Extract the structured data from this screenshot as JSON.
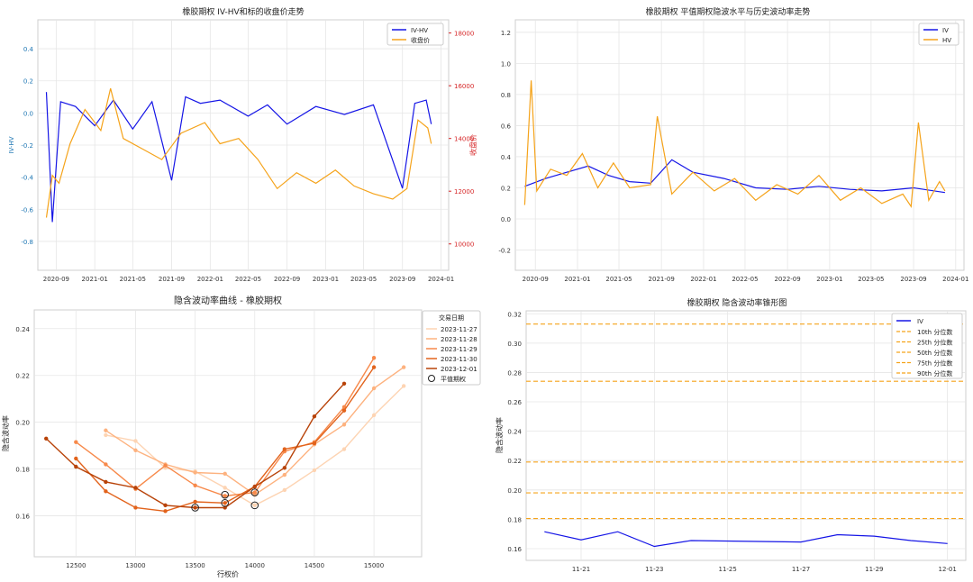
{
  "chart_data": [
    {
      "type": "line",
      "title": "橡胶期权 IV-HV和标的收盘价走势",
      "xlabel": "",
      "ylabel": "IV-HV",
      "y2label": "收盘价",
      "x_ticks": [
        "2020-09",
        "2021-01",
        "2021-05",
        "2021-09",
        "2022-01",
        "2022-05",
        "2022-09",
        "2023-01",
        "2023-05",
        "2023-09",
        "2024-01"
      ],
      "ylim": [
        -0.98,
        0.58
      ],
      "y_ticks": [
        "-0.8",
        "-0.6",
        "-0.4",
        "-0.2",
        "0.0",
        "0.2",
        "0.4"
      ],
      "y2lim": [
        9000,
        18500
      ],
      "y2_ticks": [
        "10000",
        "12000",
        "14000",
        "16000",
        "18000"
      ],
      "legend_position": "top-right",
      "grid": true,
      "series": [
        {
          "name": "IV-HV",
          "color": "#1515e6",
          "axis": "left",
          "x": [
            "2020-08-01",
            "2020-08-20",
            "2020-09-15",
            "2020-11-01",
            "2021-01-01",
            "2021-03-01",
            "2021-05-01",
            "2021-07-01",
            "2021-09-01",
            "2021-10-15",
            "2021-12-01",
            "2022-02-01",
            "2022-05-01",
            "2022-07-01",
            "2022-09-01",
            "2022-12-01",
            "2023-03-01",
            "2023-06-01",
            "2023-09-01",
            "2023-10-10",
            "2023-11-15",
            "2023-12-01"
          ],
          "values": [
            0.13,
            -0.68,
            0.07,
            0.04,
            -0.08,
            0.08,
            -0.1,
            0.07,
            -0.42,
            0.1,
            0.06,
            0.08,
            -0.02,
            0.05,
            -0.07,
            0.04,
            -0.01,
            0.05,
            -0.47,
            0.06,
            0.08,
            -0.07
          ]
        },
        {
          "name": "收盘价",
          "color": "#f5a31a",
          "axis": "right",
          "x": [
            "2020-08-01",
            "2020-08-20",
            "2020-09-10",
            "2020-10-15",
            "2020-12-01",
            "2021-01-20",
            "2021-02-20",
            "2021-04-01",
            "2021-06-01",
            "2021-08-01",
            "2021-10-01",
            "2021-12-15",
            "2022-02-01",
            "2022-04-01",
            "2022-06-01",
            "2022-08-01",
            "2022-10-01",
            "2022-12-01",
            "2023-02-01",
            "2023-04-01",
            "2023-06-01",
            "2023-08-01",
            "2023-09-15",
            "2023-10-20",
            "2023-11-20",
            "2023-12-01"
          ],
          "values": [
            11000,
            12600,
            12300,
            13800,
            15100,
            14300,
            15900,
            14000,
            13600,
            13200,
            14200,
            14600,
            13800,
            14000,
            13200,
            12100,
            12700,
            12300,
            12800,
            12200,
            11900,
            11700,
            12100,
            14700,
            14400,
            13800
          ]
        }
      ]
    },
    {
      "type": "line",
      "title": "橡胶期权 平值期权隐波水平与历史波动率走势",
      "xlabel": "",
      "ylabel": "",
      "x_ticks": [
        "2020-09",
        "2021-01",
        "2021-05",
        "2021-09",
        "2022-01",
        "2022-05",
        "2022-09",
        "2023-01",
        "2023-05",
        "2023-09",
        "2024-01"
      ],
      "ylim": [
        -0.33,
        1.28
      ],
      "y_ticks": [
        "-0.2",
        "0.0",
        "0.2",
        "0.4",
        "0.6",
        "0.8",
        "1.0",
        "1.2"
      ],
      "legend_position": "top-right",
      "grid": true,
      "series": [
        {
          "name": "IV",
          "color": "#1515e6",
          "x": [
            "2020-08-01",
            "2020-10-01",
            "2020-12-01",
            "2021-02-01",
            "2021-04-01",
            "2021-06-01",
            "2021-08-01",
            "2021-10-01",
            "2021-12-01",
            "2022-03-01",
            "2022-06-01",
            "2022-09-01",
            "2022-12-01",
            "2023-03-01",
            "2023-06-01",
            "2023-09-01",
            "2023-12-01"
          ],
          "values": [
            0.21,
            0.26,
            0.3,
            0.34,
            0.28,
            0.24,
            0.23,
            0.38,
            0.3,
            0.26,
            0.2,
            0.19,
            0.21,
            0.19,
            0.18,
            0.2,
            0.17
          ]
        },
        {
          "name": "HV",
          "color": "#f5a31a",
          "x": [
            "2020-08-01",
            "2020-08-20",
            "2020-09-05",
            "2020-10-15",
            "2020-12-01",
            "2021-01-15",
            "2021-03-01",
            "2021-04-15",
            "2021-06-01",
            "2021-08-01",
            "2021-08-20",
            "2021-10-01",
            "2021-12-01",
            "2022-02-01",
            "2022-04-01",
            "2022-06-01",
            "2022-08-01",
            "2022-10-01",
            "2022-12-01",
            "2023-02-01",
            "2023-04-01",
            "2023-06-01",
            "2023-08-01",
            "2023-08-25",
            "2023-09-15",
            "2023-10-15",
            "2023-11-15",
            "2023-12-01"
          ],
          "values": [
            0.09,
            0.89,
            0.18,
            0.32,
            0.28,
            0.42,
            0.2,
            0.36,
            0.2,
            0.22,
            0.66,
            0.16,
            0.3,
            0.18,
            0.26,
            0.12,
            0.22,
            0.16,
            0.28,
            0.12,
            0.2,
            0.1,
            0.16,
            0.08,
            0.62,
            0.12,
            0.24,
            0.18
          ]
        }
      ]
    },
    {
      "type": "line",
      "title": "隐含波动率曲线 - 橡胶期权",
      "xlabel": "行权价",
      "ylabel": "隐含波动率",
      "x_ticks": [
        "12500",
        "13000",
        "13500",
        "14000",
        "14500",
        "15000"
      ],
      "xlim": [
        12150,
        15400
      ],
      "ylim": [
        0.1425,
        0.248
      ],
      "y_ticks": [
        "0.16",
        "0.18",
        "0.20",
        "0.22",
        "0.24"
      ],
      "legend_title": "交易日期",
      "legend_position": "top-right",
      "grid": true,
      "series": [
        {
          "name": "2023-11-27",
          "color": "#fdd4b3",
          "x": [
            12750,
            13000,
            13250,
            13500,
            13750,
            14000,
            14250,
            14500,
            14750,
            15000,
            15250
          ],
          "values": [
            0.1945,
            0.192,
            0.1805,
            0.179,
            0.172,
            0.1645,
            0.171,
            0.1795,
            0.1885,
            0.203,
            0.2155
          ]
        },
        {
          "name": "2023-11-28",
          "color": "#fdb27f",
          "x": [
            12750,
            13000,
            13250,
            13500,
            13750,
            14000,
            14250,
            14500,
            14750,
            15000,
            15250
          ],
          "values": [
            0.1965,
            0.188,
            0.182,
            0.1785,
            0.178,
            0.169,
            0.1775,
            0.1905,
            0.199,
            0.2145,
            0.2235
          ]
        },
        {
          "name": "2023-11-29",
          "color": "#f7894a",
          "x": [
            12500,
            12750,
            13000,
            13250,
            13500,
            13750,
            14000,
            14250,
            14500,
            14750,
            15000
          ],
          "values": [
            0.1915,
            0.182,
            0.1715,
            0.1815,
            0.173,
            0.1685,
            0.17,
            0.1875,
            0.1915,
            0.2065,
            0.2275
          ]
        },
        {
          "name": "2023-11-30",
          "color": "#e2631c",
          "x": [
            12500,
            12750,
            13000,
            13250,
            13500,
            13750,
            14000,
            14250,
            14500,
            14750,
            15000
          ],
          "values": [
            0.1845,
            0.1705,
            0.1635,
            0.162,
            0.166,
            0.1655,
            0.1725,
            0.1885,
            0.191,
            0.205,
            0.2235
          ]
        },
        {
          "name": "2023-12-01",
          "color": "#b84309",
          "x": [
            12250,
            12500,
            12750,
            13000,
            13250,
            13500,
            13750,
            14000,
            14250,
            14500,
            14750
          ],
          "values": [
            0.193,
            0.181,
            0.1745,
            0.172,
            0.1645,
            0.1635,
            0.1635,
            0.1725,
            0.1805,
            0.2025,
            0.2165
          ]
        }
      ],
      "atm_points": {
        "name": "平值期权",
        "x": [
          13500,
          13750,
          13750,
          14000,
          14000
        ],
        "values": [
          0.1635,
          0.1655,
          0.169,
          0.1645,
          0.17
        ]
      }
    },
    {
      "type": "line",
      "title": "橡胶期权 隐含波动率锥形图",
      "xlabel": "",
      "ylabel": "隐含波动率",
      "x_ticks": [
        "11-21",
        "11-23",
        "11-25",
        "11-27",
        "11-29",
        "12-01"
      ],
      "ylim": [
        0.152,
        0.322
      ],
      "y_ticks": [
        "0.16",
        "0.18",
        "0.20",
        "0.22",
        "0.24",
        "0.26",
        "0.28",
        "0.30",
        "0.32"
      ],
      "legend_position": "top-right",
      "grid": true,
      "series": [
        {
          "name": "IV",
          "color": "#1515e6",
          "x": [
            "11-20",
            "11-21",
            "11-22",
            "11-23",
            "11-24",
            "11-27",
            "11-28",
            "11-29",
            "11-30",
            "12-01"
          ],
          "values": [
            0.1715,
            0.166,
            0.1715,
            0.1615,
            0.1655,
            0.1645,
            0.1695,
            0.1685,
            0.1655,
            0.1635
          ]
        }
      ],
      "hlines": [
        {
          "name": "10th 分位数",
          "value": 0.1805,
          "color": "#f5a31a"
        },
        {
          "name": "25th 分位数",
          "value": 0.198,
          "color": "#f5a31a"
        },
        {
          "name": "50th 分位数",
          "value": 0.219,
          "color": "#f5a31a"
        },
        {
          "name": "75th 分位数",
          "value": 0.274,
          "color": "#f5a31a"
        },
        {
          "name": "90th 分位数",
          "value": 0.313,
          "color": "#f5a31a"
        }
      ]
    }
  ]
}
